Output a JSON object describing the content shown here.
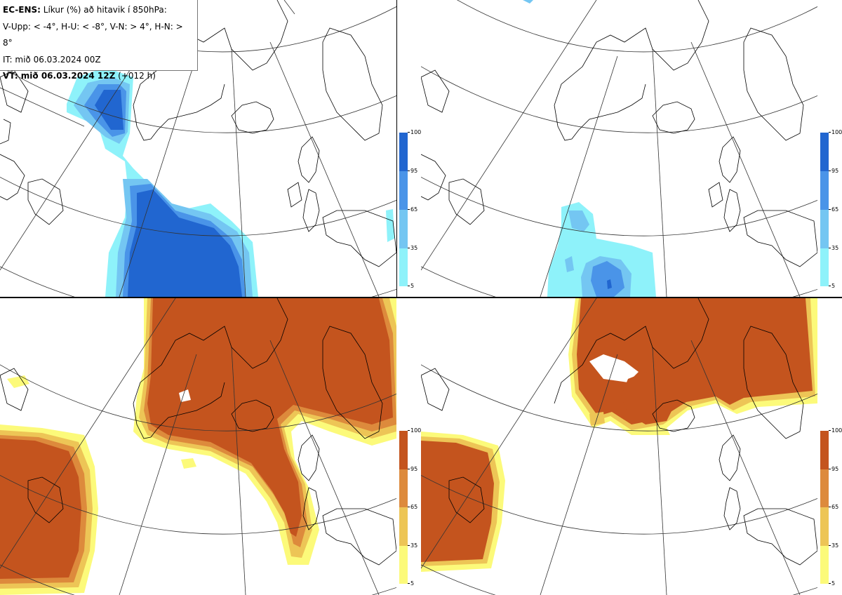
{
  "header": {
    "line1_bold": "EC-ENS:",
    "line1_rest": " Líkur (%) að hitavik í 850hPa:",
    "line2": "V-Upp: < -4°, H-U: < -8°, V-N: > 4°, H-N: > 8°",
    "line3": "IT: mið 06.03.2024 00Z",
    "line4_bold": "VT: mið 06.03.2024 12Z",
    "line4_rest": " (+012 h)"
  },
  "legend_cold": {
    "ticks": [
      "100",
      "95",
      "65",
      "35",
      "5"
    ],
    "colors": [
      "#2166d0",
      "#4a94e8",
      "#74c6f2",
      "#8ef2fa"
    ]
  },
  "legend_warm": {
    "ticks": [
      "100",
      "95",
      "65",
      "35",
      "5"
    ],
    "colors": [
      "#c4541e",
      "#dd8a3c",
      "#edc556",
      "#fcfa7a"
    ]
  },
  "panels": [
    {
      "name": "V-Upp",
      "kind": "cold"
    },
    {
      "name": "H-U",
      "kind": "cold"
    },
    {
      "name": "V-N",
      "kind": "warm"
    },
    {
      "name": "H-N",
      "kind": "warm"
    }
  ]
}
